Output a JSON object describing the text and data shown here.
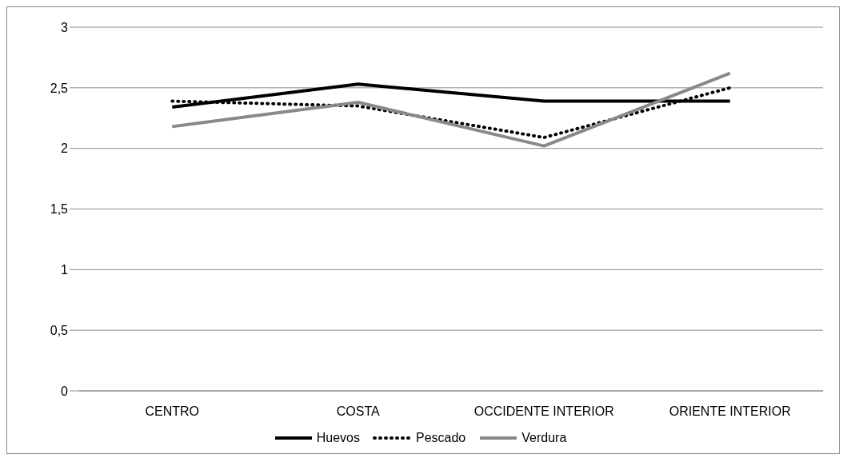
{
  "chart_data": {
    "type": "line",
    "categories": [
      "CENTRO",
      "COSTA",
      "OCCIDENTE INTERIOR",
      "ORIENTE INTERIOR"
    ],
    "series": [
      {
        "name": "Huevos",
        "color": "#000000",
        "line_style": "solid",
        "values": [
          2.34,
          2.53,
          2.39,
          2.39
        ]
      },
      {
        "name": "Pescado",
        "color": "#000000",
        "line_style": "dotted",
        "values": [
          2.39,
          2.35,
          2.09,
          2.5
        ]
      },
      {
        "name": "Verdura",
        "color": "#898989",
        "line_style": "solid",
        "values": [
          2.18,
          2.38,
          2.02,
          2.62
        ]
      }
    ],
    "ylim": [
      0,
      3
    ],
    "yticks": [
      0,
      {
        "value": 0.5,
        "label": "0,5"
      },
      1,
      {
        "value": 1.5,
        "label": "1,5"
      },
      2,
      {
        "value": 2.5,
        "label": "2,5"
      },
      3
    ],
    "grid": "y",
    "legend": "bottom",
    "marker": "none"
  }
}
